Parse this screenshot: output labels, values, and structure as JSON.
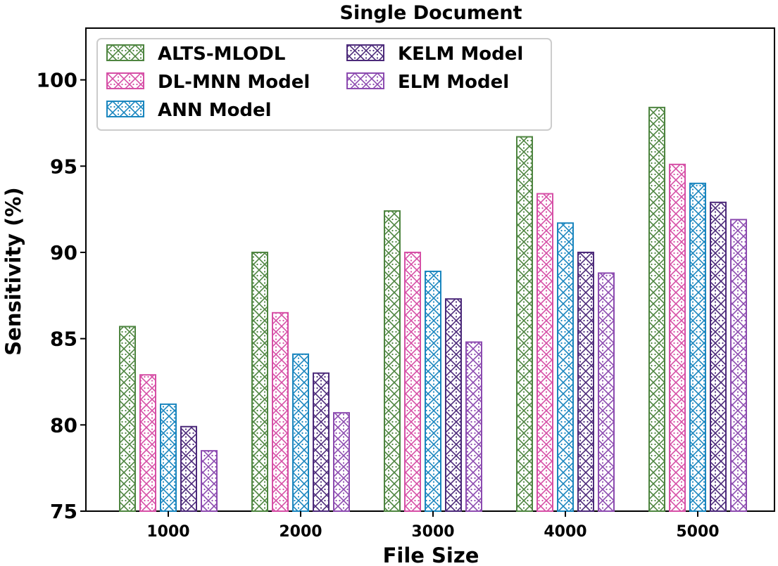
{
  "chart_data": {
    "type": "bar",
    "title": "Single Document",
    "xlabel": "File Size",
    "ylabel": "Sensitivity (%)",
    "categories": [
      "1000",
      "2000",
      "3000",
      "4000",
      "5000"
    ],
    "ylim": [
      75,
      103
    ],
    "yticks": [
      75,
      80,
      85,
      90,
      95,
      100
    ],
    "legend_position": "top-left",
    "series": [
      {
        "name": "ALTS-MLODL",
        "color": "#4e8540",
        "values": [
          85.7,
          90.0,
          92.4,
          96.7,
          98.4
        ]
      },
      {
        "name": "DL-MNN Model",
        "color": "#d64fa6",
        "values": [
          82.9,
          86.5,
          90.0,
          93.4,
          95.1
        ]
      },
      {
        "name": "ANN Model",
        "color": "#1a86bf",
        "values": [
          81.2,
          84.1,
          88.9,
          91.7,
          94.0
        ]
      },
      {
        "name": "KELM Model",
        "color": "#4c2a7a",
        "values": [
          79.9,
          83.0,
          87.3,
          90.0,
          92.9
        ]
      },
      {
        "name": "ELM Model",
        "color": "#8c4bb0",
        "values": [
          78.5,
          80.7,
          84.8,
          88.8,
          91.9
        ]
      }
    ]
  }
}
